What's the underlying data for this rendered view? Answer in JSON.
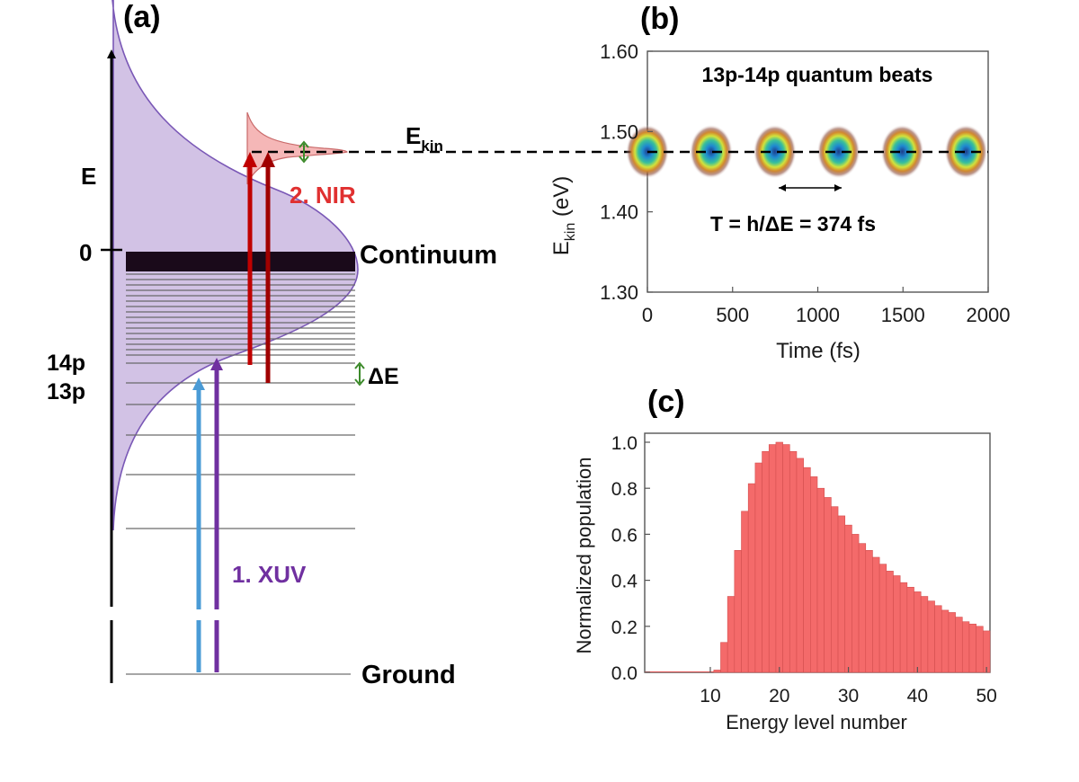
{
  "panel_a": {
    "label": "(a)",
    "axis_label": "E",
    "zero_label": "0",
    "continuum_label": "Continuum",
    "nir_label": "2. NIR",
    "xuv_label": "1. XUV",
    "ekin_label": "E",
    "ekin_sub": "kin",
    "level_14p": "14p",
    "level_13p": "13p",
    "delta_e_label": "ΔE",
    "ground_label": "Ground",
    "colors": {
      "xuv_purple": "#7030a0",
      "xuv_blue": "#4a9bd6",
      "nir_red": "#c00000",
      "nir_label": "#e03030",
      "envelope_fill": "#cdbbe2",
      "photoelectron_fill": "#f5b7b7"
    }
  },
  "panel_b": {
    "label": "(b)",
    "title": "13p-14p quantum beats",
    "period_label": "T = h/ΔE = 374 fs",
    "xlabel": "Time (fs)",
    "ylabel_main": "E",
    "ylabel_sub": "kin",
    "ylabel_unit": " (eV)",
    "xticks": [
      "0",
      "500",
      "1000",
      "1500",
      "2000"
    ],
    "yticks": [
      "1.30",
      "1.40",
      "1.50",
      "1.60"
    ]
  },
  "panel_c": {
    "label": "(c)",
    "xlabel": "Energy level number",
    "ylabel": "Normalized population",
    "xticks": [
      "10",
      "20",
      "30",
      "40",
      "50"
    ],
    "yticks": [
      "0.0",
      "0.2",
      "0.4",
      "0.6",
      "0.8",
      "1.0"
    ]
  },
  "chart_data": [
    {
      "type": "heatmap",
      "title": "13p-14p quantum beats",
      "xlabel": "Time (fs)",
      "ylabel": "Ekin (eV)",
      "xlim": [
        0,
        2000
      ],
      "ylim": [
        1.3,
        1.6
      ],
      "beat_centers_fs": [
        0,
        374,
        748,
        1122,
        1496,
        1870
      ],
      "beat_energy_ev": 1.475,
      "period_fs": 374
    },
    {
      "type": "bar",
      "xlabel": "Energy level number",
      "ylabel": "Normalized population",
      "xlim": [
        1,
        51
      ],
      "ylim": [
        0,
        1.0
      ],
      "x": [
        1,
        2,
        3,
        4,
        5,
        6,
        7,
        8,
        9,
        10,
        11,
        12,
        13,
        14,
        15,
        16,
        17,
        18,
        19,
        20,
        21,
        22,
        23,
        24,
        25,
        26,
        27,
        28,
        29,
        30,
        31,
        32,
        33,
        34,
        35,
        36,
        37,
        38,
        39,
        40,
        41,
        42,
        43,
        44,
        45,
        46,
        47,
        48,
        49,
        50
      ],
      "values": [
        0,
        0,
        0,
        0,
        0,
        0,
        0,
        0,
        0,
        0,
        0.01,
        0.13,
        0.33,
        0.53,
        0.7,
        0.82,
        0.91,
        0.96,
        0.99,
        1.0,
        0.99,
        0.96,
        0.93,
        0.89,
        0.85,
        0.8,
        0.76,
        0.72,
        0.68,
        0.64,
        0.6,
        0.56,
        0.53,
        0.5,
        0.47,
        0.44,
        0.42,
        0.39,
        0.37,
        0.35,
        0.33,
        0.31,
        0.29,
        0.27,
        0.26,
        0.24,
        0.22,
        0.21,
        0.2,
        0.18
      ]
    }
  ]
}
